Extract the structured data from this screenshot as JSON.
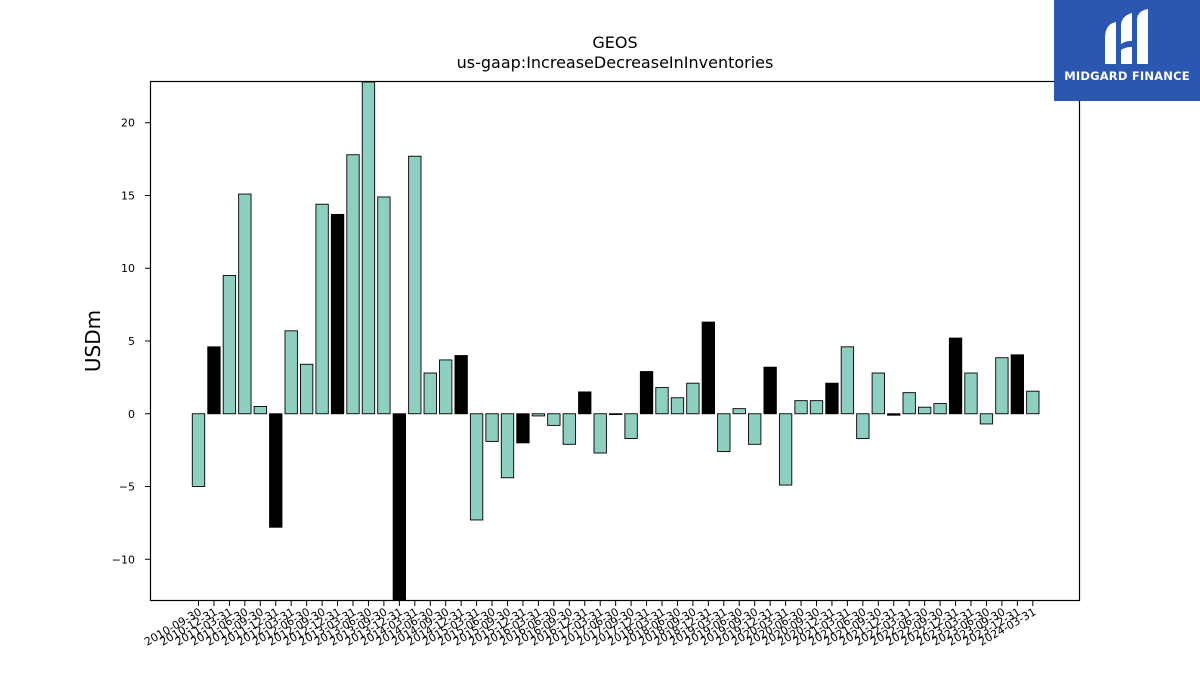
{
  "brand": {
    "name": "MIDGARD FINANCE",
    "bg_color": "#2b57b0"
  },
  "chart_data": {
    "type": "bar",
    "title": "GEOS",
    "subtitle": "us-gaap:IncreaseDecreaseInInventories",
    "ylabel": "USDm",
    "xlabel": "",
    "ylim": [
      -12.8,
      22.8
    ],
    "yticks": [
      -10,
      -5,
      0,
      5,
      10,
      15,
      20
    ],
    "ytick_labels": [
      "−10",
      "−5",
      "0",
      "5",
      "10",
      "15",
      "20"
    ],
    "grid": false,
    "colors": {
      "default": "#8ecfc1",
      "highlight": "#000000",
      "edge": "#000000"
    },
    "categories": [
      "2010-09-30",
      "2010-12-31",
      "2011-03-31",
      "2011-06-30",
      "2011-09-30",
      "2011-12-31",
      "2012-03-31",
      "2012-06-30",
      "2012-09-30",
      "2012-12-31",
      "2013-03-31",
      "2013-06-30",
      "2013-09-30",
      "2013-12-31",
      "2014-03-31",
      "2014-06-30",
      "2014-09-30",
      "2014-12-31",
      "2015-03-31",
      "2015-06-30",
      "2015-09-30",
      "2015-12-31",
      "2016-03-31",
      "2016-06-30",
      "2016-09-30",
      "2016-12-31",
      "2017-03-31",
      "2017-06-30",
      "2017-09-30",
      "2017-12-31",
      "2018-03-31",
      "2018-06-30",
      "2018-09-30",
      "2018-12-31",
      "2019-03-31",
      "2019-06-30",
      "2019-09-30",
      "2019-12-31",
      "2020-03-31",
      "2020-06-30",
      "2020-09-30",
      "2020-12-31",
      "2021-03-31",
      "2021-06-30",
      "2021-09-30",
      "2021-12-31",
      "2022-03-31",
      "2022-06-30",
      "2022-09-30",
      "2022-12-31",
      "2023-03-31",
      "2023-06-30",
      "2023-09-30",
      "2023-12-31",
      "2024-03-31"
    ],
    "values": [
      -5.0,
      4.6,
      9.5,
      15.1,
      0.5,
      -7.8,
      5.7,
      3.4,
      14.4,
      13.7,
      17.8,
      22.8,
      14.9,
      -12.8,
      17.7,
      2.8,
      3.7,
      4.0,
      -7.3,
      -1.9,
      -4.4,
      -2.0,
      -0.15,
      -0.8,
      -2.1,
      1.5,
      -2.7,
      -0.05,
      -1.7,
      2.9,
      1.8,
      1.1,
      2.1,
      6.3,
      -2.6,
      0.35,
      -2.1,
      3.2,
      -4.9,
      0.9,
      0.9,
      2.1,
      4.6,
      -1.7,
      2.8,
      -0.1,
      1.45,
      0.45,
      0.7,
      5.2,
      2.8,
      -0.7,
      3.85,
      4.05,
      1.55
    ],
    "highlight": [
      false,
      true,
      false,
      false,
      false,
      true,
      false,
      false,
      false,
      true,
      false,
      false,
      false,
      true,
      false,
      false,
      false,
      true,
      false,
      false,
      false,
      true,
      false,
      false,
      false,
      true,
      false,
      false,
      false,
      true,
      false,
      false,
      false,
      true,
      false,
      false,
      false,
      true,
      false,
      false,
      false,
      true,
      false,
      false,
      false,
      true,
      false,
      false,
      false,
      true,
      false,
      false,
      false,
      true,
      false
    ]
  }
}
